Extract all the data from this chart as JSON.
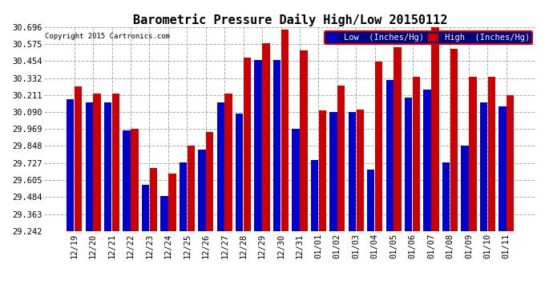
{
  "title": "Barometric Pressure Daily High/Low 20150112",
  "copyright": "Copyright 2015 Cartronics.com",
  "legend_low": "Low  (Inches/Hg)",
  "legend_high": "High  (Inches/Hg)",
  "categories": [
    "12/19",
    "12/20",
    "12/21",
    "12/22",
    "12/23",
    "12/24",
    "12/25",
    "12/26",
    "12/27",
    "12/28",
    "12/29",
    "12/30",
    "12/31",
    "01/01",
    "01/02",
    "01/03",
    "01/04",
    "01/05",
    "01/06",
    "01/07",
    "01/08",
    "01/09",
    "01/10",
    "01/11"
  ],
  "low_values": [
    30.18,
    30.16,
    30.16,
    29.96,
    29.57,
    29.49,
    29.73,
    29.82,
    30.16,
    30.08,
    30.46,
    30.46,
    29.97,
    29.75,
    30.09,
    30.09,
    29.68,
    30.32,
    30.19,
    30.25,
    29.73,
    29.85,
    30.16,
    30.13
  ],
  "high_values": [
    30.27,
    30.22,
    30.22,
    29.97,
    29.69,
    29.65,
    29.85,
    29.95,
    30.22,
    30.48,
    30.58,
    30.68,
    30.53,
    30.1,
    30.28,
    30.11,
    30.45,
    30.55,
    30.34,
    30.7,
    30.54,
    30.34,
    30.34,
    30.21
  ],
  "ylim_min": 29.242,
  "ylim_max": 30.696,
  "yticks": [
    29.242,
    29.363,
    29.484,
    29.605,
    29.727,
    29.848,
    29.969,
    30.09,
    30.211,
    30.332,
    30.454,
    30.575,
    30.696
  ],
  "bar_color_low": "#0000cc",
  "bar_color_high": "#cc0000",
  "background_color": "#ffffff",
  "grid_color": "#aaaaaa",
  "title_fontsize": 11,
  "tick_fontsize": 7.5,
  "legend_fontsize": 7.5
}
